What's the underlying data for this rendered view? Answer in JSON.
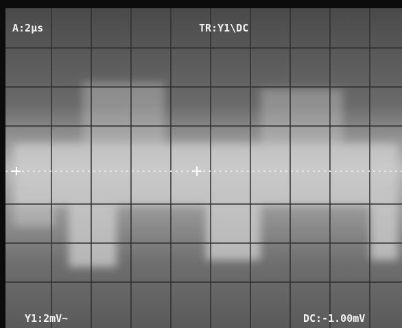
{
  "screen": {
    "top_left": "A:2µs",
    "top_center": "TR:Y1\\DC",
    "bottom_left": "Y1:2mV~",
    "bottom_right": "DC:-1.00mV"
  }
}
